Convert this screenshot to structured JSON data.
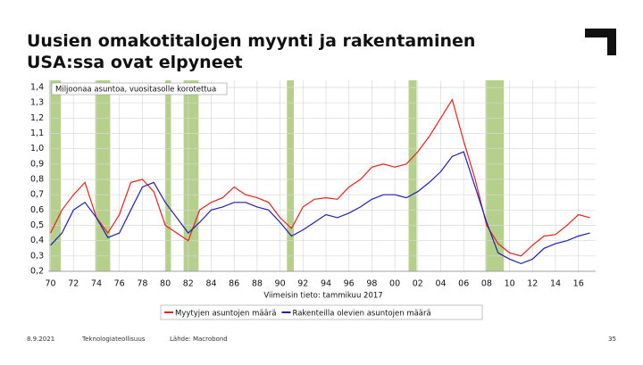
{
  "title": "Uusien omakotitalojen myynti ja rakentaminen USA:ssa ovat elpyneet",
  "footer": {
    "date": "8.9.2021",
    "organization": "Teknologiateollisuus",
    "source": "Lähde: Macrobond",
    "page": "35"
  },
  "chart_data": {
    "type": "line",
    "subtitle": "Miljoonaa asuntoa, vuositasolle korotettua",
    "annotation": "Viimeisin tieto: tammikuu 2017",
    "x": [
      1970,
      1971,
      1972,
      1973,
      1974,
      1975,
      1976,
      1977,
      1978,
      1979,
      1980,
      1981,
      1982,
      1983,
      1984,
      1985,
      1986,
      1987,
      1988,
      1989,
      1990,
      1991,
      1992,
      1993,
      1994,
      1995,
      1996,
      1997,
      1998,
      1999,
      2000,
      2001,
      2002,
      2003,
      2004,
      2005,
      2006,
      2007,
      2008,
      2009,
      2010,
      2011,
      2012,
      2013,
      2014,
      2015,
      2016,
      2017
    ],
    "series": [
      {
        "name": "Myytyjen asuntojen määrä",
        "color": "#e8201c",
        "values": [
          0.45,
          0.6,
          0.7,
          0.78,
          0.55,
          0.45,
          0.57,
          0.78,
          0.8,
          0.72,
          0.5,
          0.45,
          0.4,
          0.6,
          0.65,
          0.68,
          0.75,
          0.7,
          0.68,
          0.65,
          0.55,
          0.48,
          0.62,
          0.67,
          0.68,
          0.67,
          0.75,
          0.8,
          0.88,
          0.9,
          0.88,
          0.9,
          0.98,
          1.08,
          1.2,
          1.32,
          1.05,
          0.8,
          0.5,
          0.38,
          0.32,
          0.3,
          0.37,
          0.43,
          0.44,
          0.5,
          0.57,
          0.55
        ]
      },
      {
        "name": "Rakenteilla olevien asuntojen määrä",
        "color": "#1f1fb4",
        "values": [
          0.37,
          0.45,
          0.6,
          0.65,
          0.55,
          0.42,
          0.45,
          0.6,
          0.75,
          0.78,
          0.65,
          0.55,
          0.45,
          0.52,
          0.6,
          0.62,
          0.65,
          0.65,
          0.62,
          0.6,
          0.52,
          0.43,
          0.47,
          0.52,
          0.57,
          0.55,
          0.58,
          0.62,
          0.67,
          0.7,
          0.7,
          0.68,
          0.72,
          0.78,
          0.85,
          0.95,
          0.98,
          0.75,
          0.52,
          0.32,
          0.28,
          0.25,
          0.28,
          0.35,
          0.38,
          0.4,
          0.43,
          0.45
        ]
      }
    ],
    "shaded_periods": [
      [
        1969.9,
        1970.9
      ],
      [
        1973.9,
        1975.2
      ],
      [
        1980.0,
        1980.5
      ],
      [
        1981.6,
        1982.9
      ],
      [
        1990.6,
        1991.2
      ],
      [
        2001.2,
        2001.9
      ],
      [
        2007.9,
        2009.5
      ]
    ],
    "shade_color": "#b5d08a",
    "xlim": [
      1969.8,
      2017.5
    ],
    "xticks": [
      {
        "value": 1970,
        "label": "70"
      },
      {
        "value": 1972,
        "label": "72"
      },
      {
        "value": 1974,
        "label": "74"
      },
      {
        "value": 1976,
        "label": "76"
      },
      {
        "value": 1978,
        "label": "78"
      },
      {
        "value": 1980,
        "label": "80"
      },
      {
        "value": 1982,
        "label": "82"
      },
      {
        "value": 1984,
        "label": "84"
      },
      {
        "value": 1986,
        "label": "86"
      },
      {
        "value": 1988,
        "label": "88"
      },
      {
        "value": 1990,
        "label": "90"
      },
      {
        "value": 1992,
        "label": "92"
      },
      {
        "value": 1994,
        "label": "94"
      },
      {
        "value": 1996,
        "label": "96"
      },
      {
        "value": 1998,
        "label": "98"
      },
      {
        "value": 2000,
        "label": "00"
      },
      {
        "value": 2002,
        "label": "02"
      },
      {
        "value": 2004,
        "label": "04"
      },
      {
        "value": 2006,
        "label": "06"
      },
      {
        "value": 2008,
        "label": "08"
      },
      {
        "value": 2010,
        "label": "10"
      },
      {
        "value": 2012,
        "label": "12"
      },
      {
        "value": 2014,
        "label": "14"
      },
      {
        "value": 2016,
        "label": "16"
      }
    ],
    "ylim": [
      0.2,
      1.4
    ],
    "yticks": [
      {
        "value": 0.2,
        "label": "0,2"
      },
      {
        "value": 0.3,
        "label": "0,3"
      },
      {
        "value": 0.4,
        "label": "0,4"
      },
      {
        "value": 0.5,
        "label": "0,5"
      },
      {
        "value": 0.6,
        "label": "0,6"
      },
      {
        "value": 0.7,
        "label": "0,7"
      },
      {
        "value": 0.8,
        "label": "0,8"
      },
      {
        "value": 0.9,
        "label": "0,9"
      },
      {
        "value": 1.0,
        "label": "1,0"
      },
      {
        "value": 1.1,
        "label": "1,1"
      },
      {
        "value": 1.2,
        "label": "1,2"
      },
      {
        "value": 1.3,
        "label": "1,3"
      },
      {
        "value": 1.4,
        "label": "1,4"
      }
    ],
    "grid": true
  }
}
